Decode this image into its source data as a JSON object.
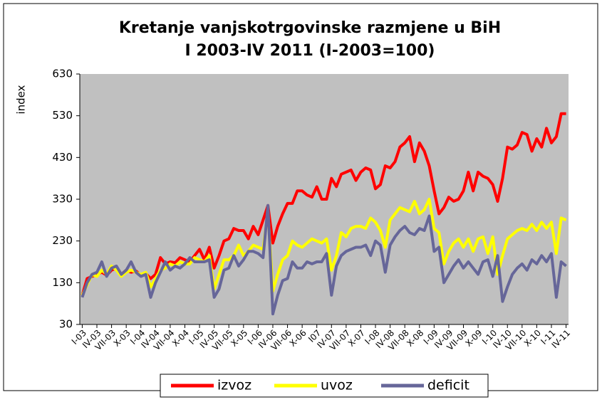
{
  "chart_data": {
    "type": "line",
    "title": "Kretanje vanjskotrgovinske razmjene u BiH",
    "subtitle": "I 2003-IV 2011 (I-2003=100)",
    "y_label": "index",
    "categories": [
      "I-03",
      null,
      null,
      "IV-03",
      null,
      null,
      "VII-03",
      null,
      null,
      "X-03",
      null,
      null,
      "I-04",
      null,
      null,
      "IV-04",
      null,
      null,
      "VII-04",
      null,
      null,
      "X-04",
      null,
      null,
      "I-05",
      null,
      null,
      "IV-05",
      null,
      null,
      "VII-05",
      null,
      null,
      "X-05",
      null,
      null,
      "I-06",
      null,
      null,
      "IV-06",
      null,
      null,
      "VII-06",
      null,
      null,
      "X-06",
      null,
      null,
      "I07",
      null,
      null,
      "IV-07",
      null,
      null,
      "VII-07",
      null,
      null,
      "X-07",
      null,
      null,
      "I-08",
      null,
      null,
      "IV-08",
      null,
      null,
      "VII-08",
      null,
      null,
      "X-08",
      null,
      null,
      "I-09",
      null,
      null,
      "IV-09",
      null,
      null,
      "VII-09",
      null,
      null,
      "X-09",
      null,
      null,
      "I-10",
      null,
      null,
      "IV-10",
      null,
      null,
      "VII-10",
      null,
      null,
      "X-10",
      null,
      null,
      "I-11",
      null,
      null,
      "IV-11"
    ],
    "series": [
      {
        "name": "izvoz",
        "color": "#ff0000",
        "values": [
          100,
          140,
          145,
          150,
          155,
          148,
          160,
          165,
          150,
          160,
          155,
          158,
          148,
          152,
          140,
          150,
          190,
          175,
          180,
          178,
          190,
          185,
          180,
          195,
          210,
          185,
          215,
          165,
          195,
          230,
          235,
          260,
          255,
          255,
          235,
          265,
          245,
          280,
          315,
          225,
          265,
          295,
          320,
          320,
          350,
          350,
          340,
          335,
          360,
          330,
          330,
          380,
          360,
          390,
          395,
          400,
          375,
          395,
          405,
          400,
          355,
          365,
          410,
          405,
          420,
          455,
          465,
          480,
          420,
          465,
          445,
          410,
          350,
          295,
          310,
          335,
          325,
          330,
          350,
          395,
          350,
          395,
          385,
          380,
          365,
          325,
          380,
          455,
          450,
          460,
          490,
          485,
          445,
          475,
          455,
          500,
          465,
          480,
          535,
          535
        ]
      },
      {
        "name": "uvoz",
        "color": "#ffff00",
        "values": [
          100,
          125,
          150,
          145,
          160,
          150,
          170,
          160,
          145,
          155,
          160,
          155,
          150,
          155,
          120,
          140,
          160,
          165,
          175,
          170,
          180,
          175,
          175,
          190,
          185,
          180,
          195,
          115,
          150,
          185,
          185,
          195,
          220,
          195,
          205,
          220,
          215,
          210,
          300,
          110,
          150,
          185,
          195,
          230,
          220,
          215,
          225,
          235,
          230,
          225,
          235,
          160,
          195,
          250,
          240,
          260,
          265,
          265,
          260,
          285,
          275,
          255,
          215,
          280,
          295,
          310,
          305,
          300,
          325,
          295,
          305,
          330,
          260,
          250,
          175,
          205,
          225,
          235,
          215,
          235,
          205,
          235,
          240,
          200,
          240,
          150,
          195,
          235,
          245,
          255,
          260,
          255,
          270,
          255,
          275,
          260,
          275,
          200,
          285,
          280
        ]
      },
      {
        "name": "deficit",
        "color": "#666699",
        "values": [
          95,
          130,
          150,
          155,
          180,
          145,
          165,
          170,
          150,
          160,
          180,
          155,
          145,
          150,
          95,
          130,
          155,
          180,
          160,
          170,
          165,
          175,
          190,
          180,
          180,
          180,
          185,
          95,
          115,
          160,
          165,
          195,
          170,
          185,
          205,
          205,
          200,
          190,
          315,
          55,
          100,
          135,
          140,
          180,
          165,
          165,
          180,
          175,
          180,
          180,
          200,
          100,
          170,
          195,
          205,
          210,
          215,
          215,
          220,
          195,
          230,
          220,
          155,
          220,
          240,
          255,
          265,
          250,
          245,
          260,
          255,
          290,
          205,
          215,
          130,
          150,
          170,
          185,
          165,
          180,
          165,
          150,
          180,
          185,
          145,
          195,
          85,
          120,
          150,
          165,
          175,
          160,
          185,
          175,
          195,
          180,
          200,
          95,
          180,
          170
        ]
      }
    ],
    "ylim": [
      30,
      630
    ],
    "yticks": [
      30,
      130,
      230,
      330,
      430,
      530,
      630
    ],
    "grid": false,
    "legend": "bottom"
  }
}
